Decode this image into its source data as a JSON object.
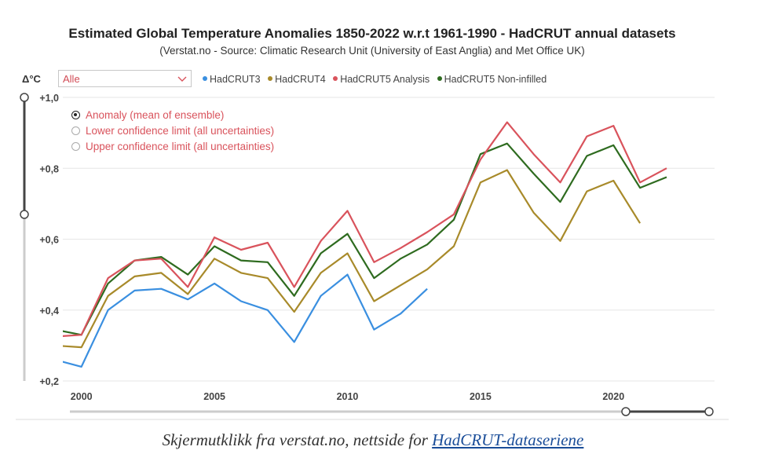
{
  "header": {
    "title": "Estimated Global Temperature Anomalies 1850-2022 w.r.t 1961-1990 - HadCRUT annual datasets",
    "subtitle": "(Verstat.no - Source: Climatic Research Unit (University of East Anglia) and Met Office UK)"
  },
  "controls": {
    "unit_label": "Δ°C",
    "dropdown_value": "Alle",
    "radio_options": [
      {
        "label": "Anomaly (mean of ensemble)",
        "selected": true
      },
      {
        "label": "Lower confidence limit (all uncertainties)",
        "selected": false
      },
      {
        "label": "Upper confidence limit (all uncertainties)",
        "selected": false
      }
    ]
  },
  "caption": {
    "text": "Skjermutklikk fra verstat.no, nettside for ",
    "link_text": "HadCRUT-dataseriene"
  },
  "colors": {
    "HadCRUT3": "#3a8fe0",
    "HadCRUT4": "#a88a2a",
    "HadCRUT5 Analysis": "#d9535c",
    "HadCRUT5 Non-infilled": "#2e6b1f",
    "grid": "#e6e6e6",
    "slider": "#444444"
  },
  "chart_data": {
    "type": "line",
    "title": "Estimated Global Temperature Anomalies 1850-2022 w.r.t 1961-1990 - HadCRUT annual datasets",
    "xlabel": "",
    "ylabel": "Δ°C",
    "xlim": [
      1999.3,
      2023.8
    ],
    "ylim": [
      0.2,
      1.0
    ],
    "x_ticks": [
      2000,
      2005,
      2010,
      2015,
      2020
    ],
    "x_tick_labels": [
      "2000",
      "2005",
      "2010",
      "2015",
      "2020"
    ],
    "y_ticks": [
      0.2,
      0.4,
      0.6,
      0.8,
      1.0
    ],
    "y_tick_labels": [
      "+0,2",
      "+0,4",
      "+0,6",
      "+0,8",
      "+1,0"
    ],
    "grid": true,
    "legend_position": "top-left",
    "series": [
      {
        "name": "HadCRUT3",
        "x": [
          1999,
          2000,
          2001,
          2002,
          2003,
          2004,
          2005,
          2006,
          2007,
          2008,
          2009,
          2010,
          2011,
          2012,
          2013
        ],
        "values": [
          0.26,
          0.24,
          0.4,
          0.455,
          0.46,
          0.43,
          0.475,
          0.425,
          0.4,
          0.31,
          0.44,
          0.5,
          0.345,
          0.39,
          0.46
        ]
      },
      {
        "name": "HadCRUT4",
        "x": [
          1999,
          2000,
          2001,
          2002,
          2003,
          2004,
          2005,
          2006,
          2007,
          2008,
          2009,
          2010,
          2011,
          2012,
          2013,
          2014,
          2015,
          2016,
          2017,
          2018,
          2019,
          2020,
          2021
        ],
        "values": [
          0.3,
          0.295,
          0.44,
          0.495,
          0.505,
          0.445,
          0.545,
          0.505,
          0.49,
          0.395,
          0.505,
          0.56,
          0.425,
          0.47,
          0.515,
          0.58,
          0.76,
          0.795,
          0.675,
          0.595,
          0.735,
          0.765,
          0.645
        ]
      },
      {
        "name": "HadCRUT5 Analysis",
        "x": [
          1999,
          2000,
          2001,
          2002,
          2003,
          2004,
          2005,
          2006,
          2007,
          2008,
          2009,
          2010,
          2011,
          2012,
          2013,
          2014,
          2015,
          2016,
          2017,
          2018,
          2019,
          2020,
          2021,
          2022
        ],
        "values": [
          0.325,
          0.33,
          0.49,
          0.54,
          0.545,
          0.465,
          0.605,
          0.57,
          0.59,
          0.465,
          0.595,
          0.68,
          0.535,
          0.575,
          0.62,
          0.67,
          0.825,
          0.93,
          0.84,
          0.76,
          0.89,
          0.92,
          0.76,
          0.8
        ]
      },
      {
        "name": "HadCRUT5 Non-infilled",
        "x": [
          1999,
          2000,
          2001,
          2002,
          2003,
          2004,
          2005,
          2006,
          2007,
          2008,
          2009,
          2010,
          2011,
          2012,
          2013,
          2014,
          2015,
          2016,
          2017,
          2018,
          2019,
          2020,
          2021,
          2022
        ],
        "values": [
          0.345,
          0.33,
          0.475,
          0.54,
          0.55,
          0.5,
          0.58,
          0.54,
          0.535,
          0.44,
          0.56,
          0.615,
          0.49,
          0.545,
          0.585,
          0.655,
          0.84,
          0.87,
          0.785,
          0.705,
          0.835,
          0.865,
          0.745,
          0.775
        ]
      }
    ]
  }
}
